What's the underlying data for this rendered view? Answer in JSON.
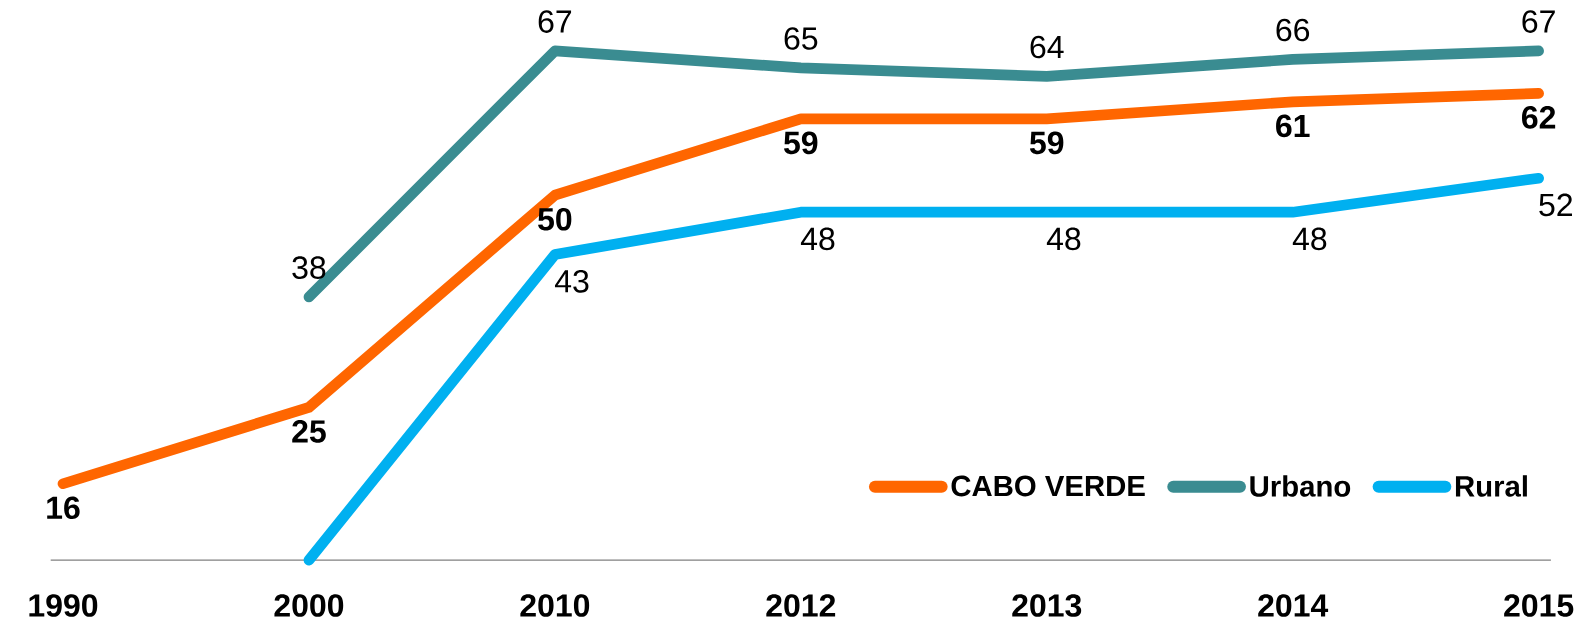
{
  "chart_data": {
    "type": "line",
    "categories": [
      "1990",
      "2000",
      "2010",
      "2012",
      "2013",
      "2014",
      "2015"
    ],
    "series": [
      {
        "name": "CABO VERDE",
        "color": "#ff6600",
        "values": [
          16,
          25,
          50,
          59,
          59,
          61,
          62
        ],
        "value_labels": [
          "16",
          "25",
          "50",
          "59",
          "59",
          "61",
          "62"
        ]
      },
      {
        "name": "Urbano",
        "color": "#3a8c91",
        "values": [
          null,
          38,
          67,
          65,
          64,
          66,
          67
        ],
        "value_labels": [
          null,
          "38",
          "67",
          "65",
          "64",
          "66",
          "67"
        ]
      },
      {
        "name": "Rural",
        "color": "#00b0f0",
        "values": [
          null,
          7,
          43,
          48,
          48,
          48,
          52
        ],
        "value_labels": [
          null,
          null,
          "43",
          "48",
          "48",
          "48",
          "52"
        ]
      }
    ],
    "tick_labels": "x",
    "legend": "bottom right",
    "grid": false,
    "marker": "none",
    "line_style": "solid"
  }
}
